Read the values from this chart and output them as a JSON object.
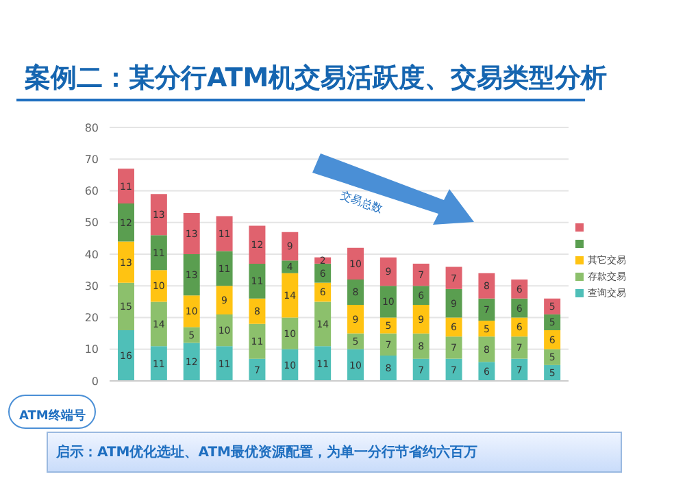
{
  "chart_data": {
    "type": "bar",
    "title": "案例二：某分行ATM机交易活跃度、交易类型分析",
    "categories": [
      null,
      null,
      null,
      null,
      null,
      null,
      null,
      null,
      null,
      null,
      null,
      null,
      null,
      null
    ],
    "stacked": true,
    "series": [
      {
        "name": "查询交易",
        "color": "#4fbfb8",
        "values": [
          16,
          11,
          12,
          11,
          7,
          10,
          11,
          10,
          8,
          7,
          7,
          6,
          7,
          5
        ]
      },
      {
        "name": "存款交易",
        "color": "#8cc06c",
        "values": [
          15,
          14,
          5,
          10,
          11,
          10,
          14,
          5,
          7,
          8,
          7,
          8,
          7,
          5
        ]
      },
      {
        "name": "其它交易",
        "color": "#ffc312",
        "values": [
          13,
          10,
          10,
          9,
          8,
          14,
          6,
          9,
          5,
          9,
          6,
          5,
          6,
          6
        ]
      },
      {
        "color": "#5a9e50",
        "values": [
          12,
          11,
          13,
          11,
          11,
          4,
          6,
          8,
          10,
          6,
          9,
          7,
          6,
          5
        ]
      },
      {
        "color": "#e0626e",
        "values": [
          11,
          13,
          13,
          11,
          12,
          9,
          2,
          10,
          9,
          7,
          7,
          8,
          6,
          5
        ]
      }
    ],
    "ylim": [
      0,
      80
    ],
    "yticks": [
      0,
      10,
      20,
      30,
      40,
      50,
      60,
      70,
      80
    ],
    "grid": "y",
    "legend": "right",
    "data_labels": true,
    "annotations": [
      "交易总数",
      "ATM终端号",
      "启示：ATM优化选址、ATM最优资源配置，为单一分行节省约六百万"
    ]
  }
}
